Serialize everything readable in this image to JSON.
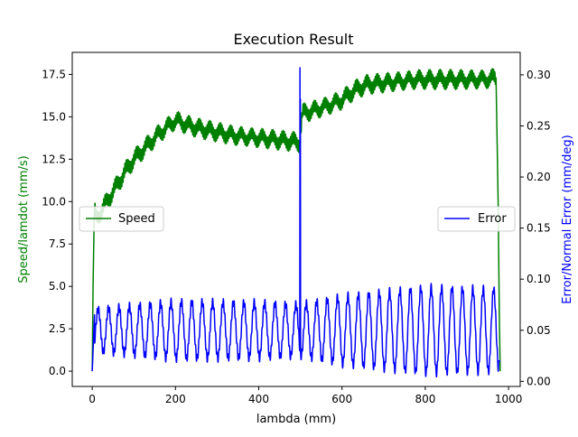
{
  "chart_data": {
    "type": "line",
    "title": "Execution Result",
    "xlabel": "lambda (mm)",
    "ylabel_left": "Speed/lamdot (mm/s)",
    "ylabel_right": "Error/Normal Error (mm/deg)",
    "xlim": [
      -48,
      1028
    ],
    "ylim_left": [
      -0.9,
      18.8
    ],
    "ylim_right": [
      -0.005,
      0.322
    ],
    "x_ticks": [
      0,
      200,
      400,
      600,
      800,
      1000
    ],
    "y_ticks_left": [
      0.0,
      2.5,
      5.0,
      7.5,
      10.0,
      12.5,
      15.0,
      17.5
    ],
    "y_ticks_right": [
      0.0,
      0.05,
      0.1,
      0.15,
      0.2,
      0.25,
      0.3
    ],
    "grid": false,
    "legend_left": {
      "placement": "center-left",
      "label": "Speed"
    },
    "legend_right": {
      "placement": "center-right",
      "label": "Error"
    },
    "colors": {
      "speed": "#008000",
      "error": "#0000ff",
      "speed_label": "#008000",
      "error_label": "#0000ff"
    },
    "series": [
      {
        "name": "Speed",
        "axis": "left",
        "color": "#008000",
        "x": [
          0,
          2,
          5,
          10,
          20,
          30,
          40,
          60,
          80,
          100,
          120,
          140,
          160,
          180,
          200,
          210,
          230,
          260,
          300,
          340,
          380,
          420,
          460,
          495,
          499,
          500,
          505,
          520,
          560,
          600,
          620,
          640,
          660,
          700,
          740,
          780,
          820,
          860,
          900,
          940,
          970,
          975,
          978,
          980
        ],
        "y": [
          0.0,
          5.0,
          9.5,
          9.0,
          9.4,
          9.8,
          10.2,
          11.0,
          11.8,
          12.5,
          13.0,
          13.5,
          14.0,
          14.4,
          14.8,
          14.7,
          14.5,
          14.3,
          14.1,
          13.9,
          13.8,
          13.7,
          13.6,
          13.5,
          13.5,
          14.0,
          15.2,
          15.3,
          15.6,
          16.0,
          16.4,
          16.7,
          16.9,
          17.0,
          17.1,
          17.2,
          17.2,
          17.2,
          17.2,
          17.2,
          17.3,
          10.0,
          3.0,
          0.0
        ],
        "oscillation_amplitude": 0.35
      },
      {
        "name": "Error",
        "axis": "right",
        "color": "#0000ff",
        "x_start": 0,
        "x_end": 980,
        "baseline": 0.05,
        "oscillation_period_mm": 25,
        "oscillation_amplitude": [
          {
            "x": 0,
            "amp": 0.02
          },
          {
            "x": 200,
            "amp": 0.028
          },
          {
            "x": 400,
            "amp": 0.027
          },
          {
            "x": 500,
            "amp": 0.025
          },
          {
            "x": 600,
            "amp": 0.033
          },
          {
            "x": 800,
            "amp": 0.042
          },
          {
            "x": 980,
            "amp": 0.04
          }
        ],
        "spike": {
          "x": 499,
          "value": 0.307
        },
        "end_value": 0.02
      }
    ]
  }
}
